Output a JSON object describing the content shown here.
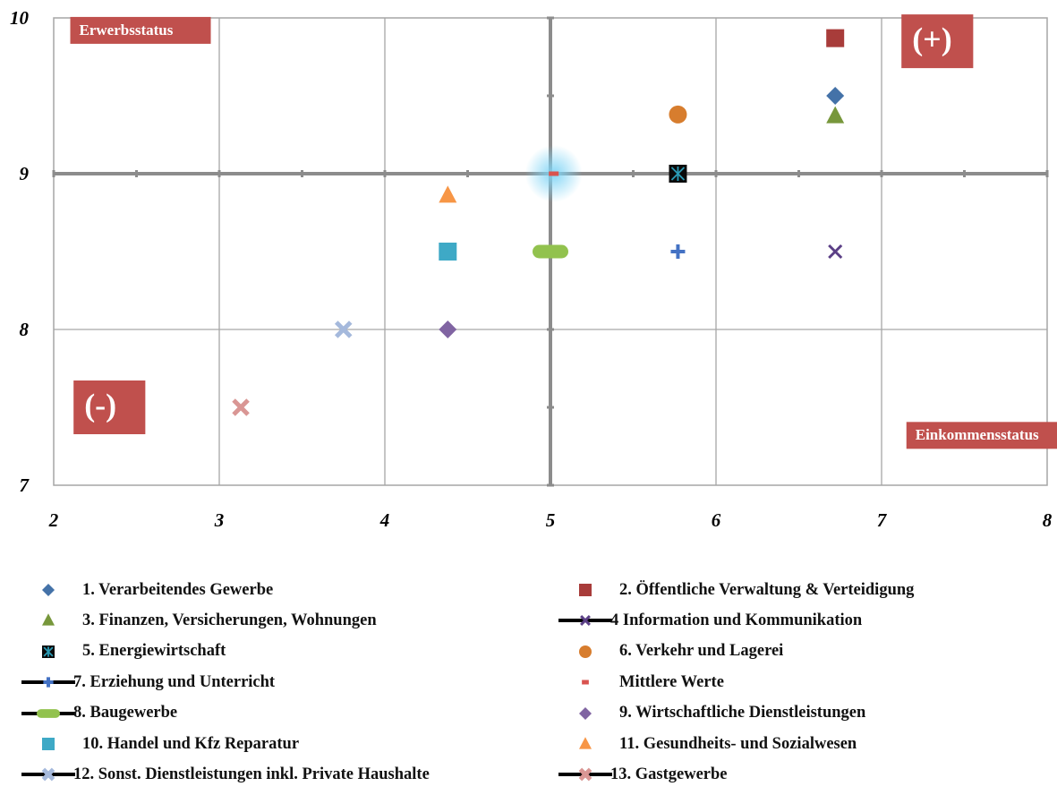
{
  "chart_data": {
    "type": "scatter",
    "title": "",
    "xlabel": "",
    "ylabel": "",
    "xlim": [
      2,
      8
    ],
    "ylim": [
      7,
      10
    ],
    "xticks": [
      "2",
      "3",
      "4",
      "5",
      "6",
      "7",
      "8"
    ],
    "yticks": [
      "7",
      "8",
      "9",
      "10"
    ],
    "grid": true,
    "reference_lines": {
      "x": 5,
      "y": 9
    },
    "legend_position": "bottom",
    "series": [
      {
        "name": "1. Verarbeitendes Gewerbe",
        "x": 6.72,
        "y": 9.5,
        "marker": "diamond",
        "color": "#4472a8"
      },
      {
        "name": "2. Öffentliche Verwaltung & Verteidigung",
        "x": 6.72,
        "y": 9.87,
        "marker": "square",
        "color": "#a83c3a"
      },
      {
        "name": "3. Finanzen, Versicherungen, Wohnungen",
        "x": 6.72,
        "y": 9.37,
        "marker": "triangle",
        "color": "#77973b"
      },
      {
        "name": "4 Information und Kommunikation",
        "x": 6.72,
        "y": 8.5,
        "marker": "x",
        "color": "#5b3f86"
      },
      {
        "name": "5. Energiewirtschaft",
        "x": 5.77,
        "y": 9.0,
        "marker": "star-square",
        "color": "#2b9bb5"
      },
      {
        "name": "6. Verkehr und Lagerei",
        "x": 5.77,
        "y": 9.38,
        "marker": "circle",
        "color": "#d77d2e"
      },
      {
        "name": "7. Erziehung und Unterricht",
        "x": 5.77,
        "y": 8.5,
        "marker": "plus",
        "color": "#4472c4"
      },
      {
        "name": "Mittlere Werte",
        "x": 5.02,
        "y": 9.0,
        "marker": "dash",
        "color": "#d9534f"
      },
      {
        "name": "8. Baugewerbe",
        "x": 5.0,
        "y": 8.5,
        "marker": "pill",
        "color": "#92c24e"
      },
      {
        "name": "9. Wirtschaftliche Dienstleistungen",
        "x": 4.38,
        "y": 8.0,
        "marker": "diamond",
        "color": "#8064a2"
      },
      {
        "name": "10. Handel und Kfz Reparatur",
        "x": 4.38,
        "y": 8.5,
        "marker": "square",
        "color": "#3ea9c6"
      },
      {
        "name": "11. Gesundheits- und Sozialwesen",
        "x": 4.38,
        "y": 8.86,
        "marker": "triangle",
        "color": "#f79646"
      },
      {
        "name": "12. Sonst. Dienstleistungen inkl. Private Haushalte",
        "x": 3.75,
        "y": 8.0,
        "marker": "x-thick",
        "color": "#a5b9dc"
      },
      {
        "name": "13. Gastgewerbe",
        "x": 3.13,
        "y": 7.5,
        "marker": "x-thick",
        "color": "#d99694"
      }
    ],
    "annotations": [
      {
        "text": "Erwerbsstatus",
        "x": 2.1,
        "y": 9.92,
        "size": "small"
      },
      {
        "text": "(+)",
        "x": 7.12,
        "y": 9.85,
        "size": "large"
      },
      {
        "text": "(-)",
        "x": 2.12,
        "y": 7.5,
        "size": "large"
      },
      {
        "text": "Einkommensstatus",
        "x": 7.15,
        "y": 7.32,
        "size": "small"
      }
    ]
  },
  "colors": {
    "axis": "#8c8c8c",
    "grid": "#a6a6a6",
    "annotation_bg": "#c0504d",
    "highlight_glow": "#7fd4f5"
  }
}
